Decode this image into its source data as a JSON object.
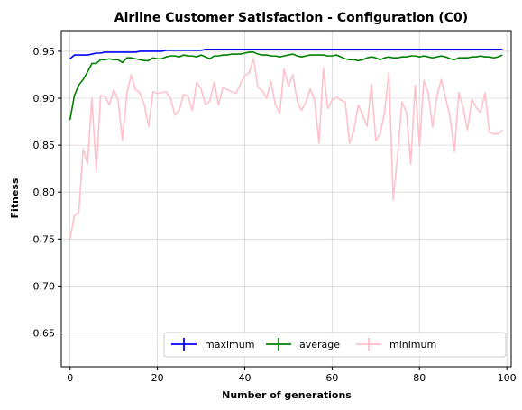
{
  "chart_data": {
    "type": "line",
    "title": "Airline Customer Satisfaction - Configuration (C0)",
    "xlabel": "Number of generations",
    "ylabel": "Fitness",
    "xlim": [
      -2,
      101
    ],
    "ylim": [
      0.614,
      0.972
    ],
    "xticks": [
      0,
      20,
      40,
      60,
      80,
      100
    ],
    "yticks": [
      0.65,
      0.7,
      0.75,
      0.8,
      0.85,
      0.9,
      0.95
    ],
    "ytick_labels": [
      "0.65",
      "0.70",
      "0.75",
      "0.80",
      "0.85",
      "0.90",
      "0.95"
    ],
    "grid": true,
    "legend_position": "lower-right",
    "x": [
      0,
      1,
      2,
      3,
      4,
      5,
      6,
      7,
      8,
      9,
      10,
      11,
      12,
      13,
      14,
      15,
      16,
      17,
      18,
      19,
      20,
      21,
      22,
      23,
      24,
      25,
      26,
      27,
      28,
      29,
      30,
      31,
      32,
      33,
      34,
      35,
      36,
      37,
      38,
      39,
      40,
      41,
      42,
      43,
      44,
      45,
      46,
      47,
      48,
      49,
      50,
      51,
      52,
      53,
      54,
      55,
      56,
      57,
      58,
      59,
      60,
      61,
      62,
      63,
      64,
      65,
      66,
      67,
      68,
      69,
      70,
      71,
      72,
      73,
      74,
      75,
      76,
      77,
      78,
      79,
      80,
      81,
      82,
      83,
      84,
      85,
      86,
      87,
      88,
      89,
      90,
      91,
      92,
      93,
      94,
      95,
      96,
      97,
      98,
      99
    ],
    "series": [
      {
        "name": "maximum",
        "color": "#0000ff",
        "values": [
          0.942,
          0.946,
          0.946,
          0.946,
          0.946,
          0.947,
          0.948,
          0.948,
          0.949,
          0.949,
          0.949,
          0.949,
          0.949,
          0.949,
          0.949,
          0.949,
          0.95,
          0.95,
          0.95,
          0.95,
          0.95,
          0.95,
          0.951,
          0.951,
          0.951,
          0.951,
          0.951,
          0.951,
          0.951,
          0.951,
          0.951,
          0.952,
          0.952,
          0.952,
          0.952,
          0.952,
          0.952,
          0.952,
          0.952,
          0.952,
          0.952,
          0.952,
          0.952,
          0.952,
          0.952,
          0.952,
          0.952,
          0.952,
          0.952,
          0.952,
          0.952,
          0.952,
          0.952,
          0.952,
          0.952,
          0.952,
          0.952,
          0.952,
          0.952,
          0.952,
          0.952,
          0.952,
          0.952,
          0.952,
          0.952,
          0.952,
          0.952,
          0.952,
          0.952,
          0.952,
          0.952,
          0.952,
          0.952,
          0.952,
          0.952,
          0.952,
          0.952,
          0.952,
          0.952,
          0.952,
          0.952,
          0.952,
          0.952,
          0.952,
          0.952,
          0.952,
          0.952,
          0.952,
          0.952,
          0.952,
          0.952,
          0.952,
          0.952,
          0.952,
          0.952,
          0.952,
          0.952,
          0.952,
          0.952,
          0.952
        ]
      },
      {
        "name": "average",
        "color": "#008000",
        "values": [
          0.877,
          0.903,
          0.914,
          0.92,
          0.928,
          0.937,
          0.937,
          0.941,
          0.941,
          0.942,
          0.941,
          0.941,
          0.938,
          0.943,
          0.943,
          0.942,
          0.941,
          0.94,
          0.94,
          0.943,
          0.942,
          0.942,
          0.944,
          0.945,
          0.945,
          0.944,
          0.946,
          0.945,
          0.945,
          0.944,
          0.946,
          0.944,
          0.942,
          0.945,
          0.945,
          0.946,
          0.946,
          0.947,
          0.947,
          0.947,
          0.948,
          0.949,
          0.949,
          0.947,
          0.946,
          0.946,
          0.945,
          0.945,
          0.944,
          0.945,
          0.946,
          0.947,
          0.945,
          0.944,
          0.945,
          0.946,
          0.946,
          0.946,
          0.946,
          0.945,
          0.945,
          0.946,
          0.944,
          0.942,
          0.941,
          0.941,
          0.94,
          0.941,
          0.943,
          0.944,
          0.943,
          0.941,
          0.943,
          0.944,
          0.943,
          0.943,
          0.944,
          0.944,
          0.945,
          0.945,
          0.944,
          0.945,
          0.944,
          0.943,
          0.944,
          0.945,
          0.944,
          0.942,
          0.941,
          0.943,
          0.943,
          0.943,
          0.944,
          0.944,
          0.945,
          0.944,
          0.944,
          0.943,
          0.944,
          0.946
        ]
      },
      {
        "name": "minimum",
        "color": "#ffc0cb",
        "values": [
          0.75,
          0.775,
          0.778,
          0.846,
          0.83,
          0.9,
          0.822,
          0.903,
          0.902,
          0.893,
          0.909,
          0.898,
          0.855,
          0.905,
          0.925,
          0.909,
          0.906,
          0.893,
          0.87,
          0.907,
          0.905,
          0.906,
          0.907,
          0.9,
          0.882,
          0.887,
          0.904,
          0.902,
          0.887,
          0.917,
          0.91,
          0.893,
          0.897,
          0.917,
          0.893,
          0.912,
          0.909,
          0.907,
          0.905,
          0.915,
          0.924,
          0.927,
          0.942,
          0.912,
          0.908,
          0.9,
          0.918,
          0.893,
          0.884,
          0.931,
          0.913,
          0.925,
          0.897,
          0.887,
          0.896,
          0.91,
          0.898,
          0.852,
          0.932,
          0.889,
          0.898,
          0.901,
          0.898,
          0.896,
          0.852,
          0.866,
          0.893,
          0.882,
          0.87,
          0.915,
          0.855,
          0.862,
          0.885,
          0.927,
          0.792,
          0.839,
          0.896,
          0.885,
          0.83,
          0.914,
          0.849,
          0.919,
          0.906,
          0.869,
          0.903,
          0.92,
          0.9,
          0.88,
          0.843,
          0.906,
          0.89,
          0.866,
          0.899,
          0.89,
          0.885,
          0.906,
          0.864,
          0.862,
          0.862,
          0.866
        ]
      }
    ]
  }
}
